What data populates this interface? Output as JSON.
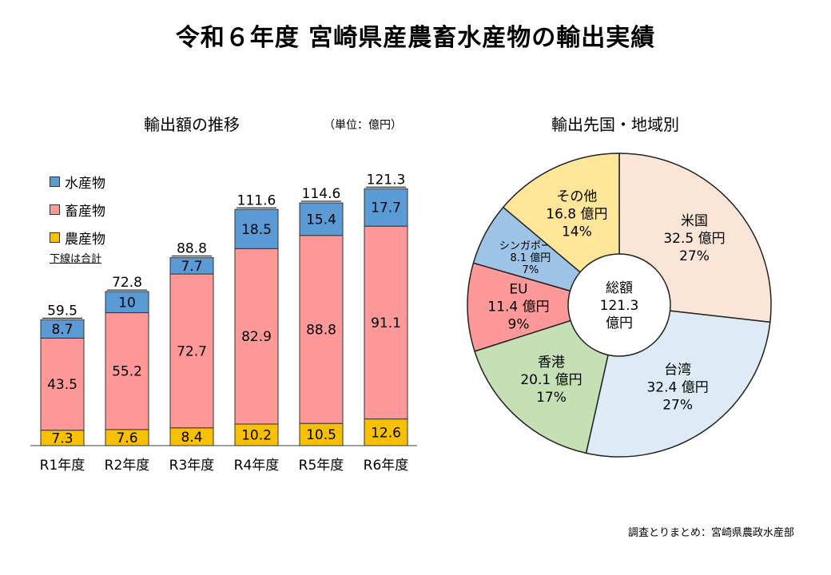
{
  "title": "令和６年度 宮崎県産農畜水産物の輸出実績",
  "source": "調査とりまとめ：宮崎県農政水産部",
  "chart_data": [
    {
      "type": "bar",
      "stacked": true,
      "title": "輸出額の推移",
      "unit_note": "（単位：億円）",
      "legend_note": "下線は合計",
      "categories": [
        "R1年度",
        "R2年度",
        "R3年度",
        "R4年度",
        "R5年度",
        "R6年度"
      ],
      "series": [
        {
          "name": "農産物",
          "color": "#f9c000",
          "values": [
            7.3,
            7.6,
            8.4,
            10.2,
            10.5,
            12.6
          ]
        },
        {
          "name": "畜産物",
          "color": "#ff9999",
          "values": [
            43.5,
            55.2,
            72.7,
            82.9,
            88.8,
            91.1
          ]
        },
        {
          "name": "水産物",
          "color": "#5b9bd5",
          "values": [
            8.7,
            10,
            7.7,
            18.5,
            15.4,
            17.7
          ]
        }
      ],
      "totals": [
        59.5,
        72.8,
        88.8,
        111.6,
        114.6,
        121.3
      ],
      "legend_order": [
        "水産物",
        "畜産物",
        "農産物"
      ],
      "legend_placement": "top-left"
    },
    {
      "type": "pie",
      "title": "輸出先国・地域別",
      "center_label": [
        "総額",
        "121.3",
        "億円"
      ],
      "slices": [
        {
          "name": "米国",
          "value": 32.5,
          "unit": "億円",
          "percent": "27%",
          "color": "#fbe5d6"
        },
        {
          "name": "台湾",
          "value": 32.4,
          "unit": "億円",
          "percent": "27%",
          "color": "#deebf7"
        },
        {
          "name": "香港",
          "value": 20.1,
          "unit": "億円",
          "percent": "17%",
          "color": "#c5e0b4"
        },
        {
          "name": "EU",
          "value": 11.4,
          "unit": "億円",
          "percent": "9%",
          "color": "#ff9999"
        },
        {
          "name": "シンガポール",
          "value": 8.1,
          "unit": "億円",
          "percent": "7%",
          "color": "#9dc3e6"
        },
        {
          "name": "その他",
          "value": 16.8,
          "unit": "億円",
          "percent": "14%",
          "color": "#ffe699"
        }
      ]
    }
  ]
}
